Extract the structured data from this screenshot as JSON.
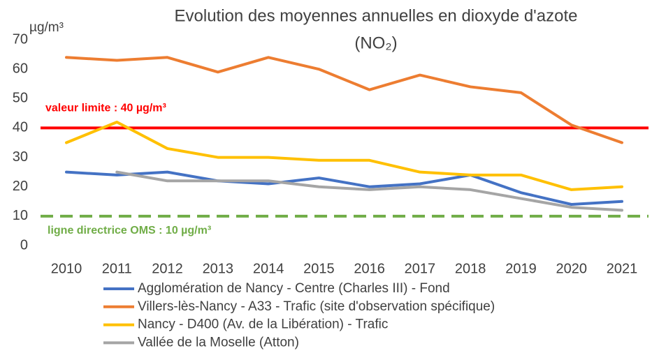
{
  "chart_data": {
    "type": "line",
    "title": "Evolution des moyennes annuelles en dioxyde d'azote",
    "title_line2": "(NO₂)",
    "y_axis_label": "µg/m³",
    "categories": [
      "2010",
      "2011",
      "2012",
      "2013",
      "2014",
      "2015",
      "2016",
      "2017",
      "2018",
      "2019",
      "2020",
      "2021"
    ],
    "series": [
      {
        "name": "Agglomération de Nancy  - Centre (Charles III) - Fond",
        "color": "#4472c4",
        "values": [
          25,
          24,
          25,
          22,
          21,
          23,
          20,
          21,
          24,
          18,
          14,
          15
        ]
      },
      {
        "name": "Villers-lès-Nancy - A33 - Trafic (site d'observation spécifique)",
        "color": "#ed7d31",
        "values": [
          64,
          63,
          64,
          59,
          64,
          60,
          53,
          58,
          54,
          52,
          41,
          35
        ]
      },
      {
        "name": "Nancy - D400 (Av. de la Libération) - Trafic",
        "color": "#ffc000",
        "values": [
          35,
          42,
          33,
          30,
          30,
          29,
          29,
          25,
          24,
          24,
          19,
          20
        ]
      },
      {
        "name": "Vallée de la Moselle (Atton)",
        "color": "#a5a5a5",
        "values": [
          null,
          25,
          22,
          22,
          22,
          20,
          19,
          20,
          19,
          16,
          13,
          12
        ]
      }
    ],
    "reference_lines": [
      {
        "value": 40,
        "label": "valeur limite : 40 µg/m³",
        "color": "#ff0000",
        "dashed": false
      },
      {
        "value": 10,
        "label": "ligne directrice OMS : 10 µg/m³",
        "color": "#70ad47",
        "dashed": true
      }
    ],
    "ylim": [
      0,
      70
    ],
    "yticks": [
      0,
      10,
      20,
      30,
      40,
      50,
      60,
      70
    ],
    "grid": false,
    "legend": "bottom"
  }
}
